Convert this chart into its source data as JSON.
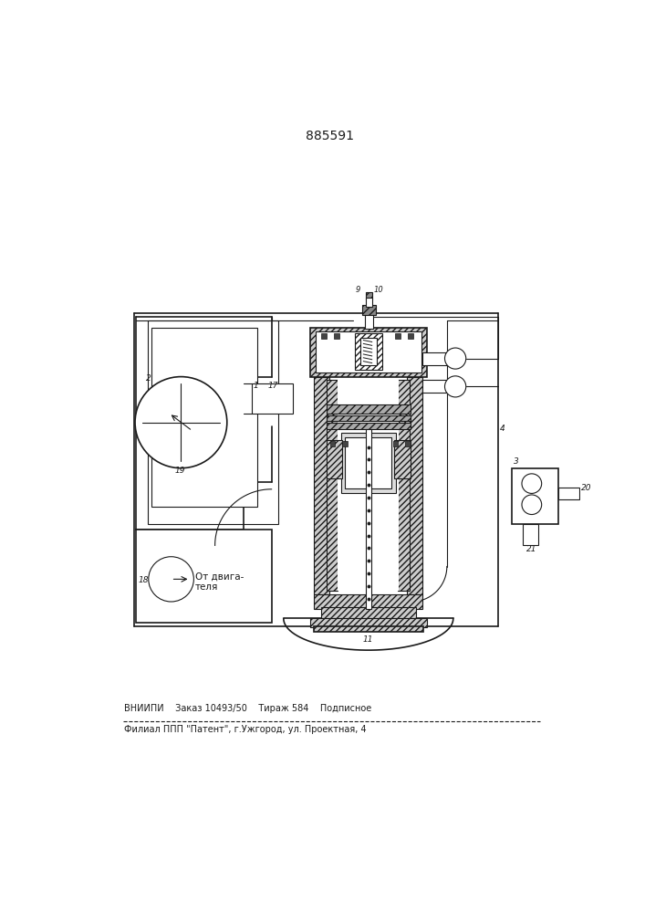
{
  "title": "885591",
  "bg_color": "#ffffff",
  "line_color": "#1a1a1a",
  "footer_line1": "ВНИИПИ    Заказ 10493/50    Тираж 584    Подписное",
  "footer_line2": "Филиал ППП \"Патент\", г.Ужгород, ул. Проектная, 4"
}
